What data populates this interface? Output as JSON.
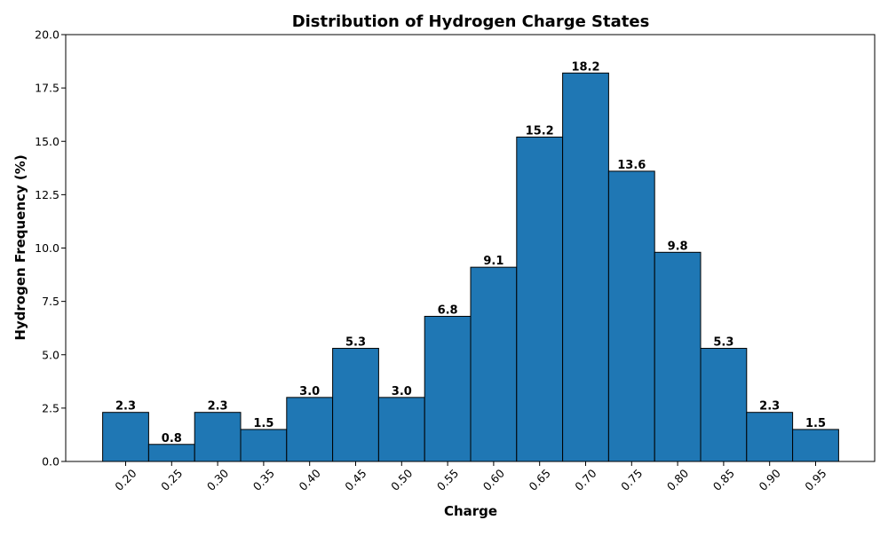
{
  "chart_data": {
    "type": "bar",
    "title": "Distribution of Hydrogen Charge States",
    "xlabel": "Charge",
    "ylabel": "Hydrogen Frequency (%)",
    "categories": [
      "0.20",
      "0.25",
      "0.30",
      "0.35",
      "0.40",
      "0.45",
      "0.50",
      "0.55",
      "0.60",
      "0.65",
      "0.70",
      "0.75",
      "0.80",
      "0.85",
      "0.90",
      "0.95"
    ],
    "values": [
      2.3,
      0.8,
      2.3,
      1.5,
      3.0,
      5.3,
      3.0,
      6.8,
      9.1,
      15.2,
      18.2,
      13.6,
      9.8,
      5.3,
      2.3,
      1.5
    ],
    "data_labels": [
      "2.3",
      "0.8",
      "2.3",
      "1.5",
      "3.0",
      "5.3",
      "3.0",
      "6.8",
      "9.1",
      "15.2",
      "18.2",
      "13.6",
      "9.8",
      "5.3",
      "2.3",
      "1.5"
    ],
    "ylim": [
      0,
      20
    ],
    "yticks": [
      "0.0",
      "2.5",
      "5.0",
      "7.5",
      "10.0",
      "12.5",
      "15.0",
      "17.5",
      "20.0"
    ],
    "grid": false,
    "colors": {
      "bar": "#1f77b4",
      "edge": "#000000"
    }
  }
}
